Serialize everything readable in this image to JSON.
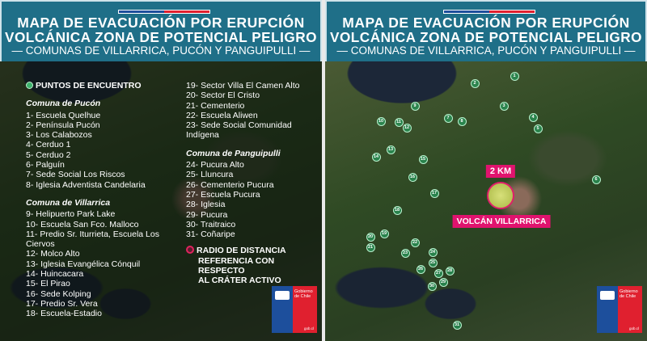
{
  "header": {
    "title_line1": "MAPA DE EVACUACIÓN POR ERUPCIÓN",
    "title_line2": "VOLCÁNICA ZONA DE POTENCIAL PELIGRO",
    "subtitle": "— COMUNAS DE VILLARRICA, PUCÓN Y PANGUIPULLI —"
  },
  "colors": {
    "header": "#1f6f88",
    "meeting_point": "#3db26c",
    "radius": "#e0136e",
    "flag_blue": "#1d4f9c",
    "flag_red": "#e0202f"
  },
  "legend": {
    "meeting_points_label": "PUNTOS DE ENCUENTRO",
    "pucon": {
      "title": "Comuna de Pucón",
      "items": [
        "1- Escuela Quelhue",
        "2- Península Pucón",
        "3- Los Calabozos",
        "4- Cerduo 1",
        "5- Cerduo 2",
        "6- Palguín",
        "7- Sede Social Los Riscos",
        "8- Iglesia Adventista Candelaria"
      ]
    },
    "villarrica": {
      "title": "Comuna de Villarrica",
      "items": [
        "9- Helipuerto Park Lake",
        "10- Escuela San Fco. Malloco",
        "11- Predio Sr. Iturrieta, Escuela Los Ciervos",
        "12- Molco Alto",
        "13- Iglesia Evangélica Cónquil",
        "14- Huincacara",
        "15- El Pirao",
        "16- Sede Kolping",
        "17- Predio Sr. Vera",
        "18- Escuela-Estadio",
        "19- Sector Villa El Camen Alto",
        "20- Sector El Cristo",
        "21- Cementerio",
        "22- Escuela Aliwen",
        "23- Sede Social Comunidad Indígena"
      ]
    },
    "panguipulli": {
      "title": "Comuna de Panguipulli",
      "items": [
        "24- Pucura Alto",
        "25- Lluncura",
        "26- Cementerio Pucura",
        "27- Escuela Pucura",
        "28- Iglesia",
        "29- Pucura",
        "30- Traitraico",
        "31- Coñaripe"
      ]
    },
    "radius_label": [
      "RADIO DE DISTANCIA",
      "REFERENCIA CON RESPECTO",
      "AL CRÁTER ACTIVO"
    ]
  },
  "map": {
    "radius_label": "2 KM",
    "volcano_label": "VOLCÁN VILLARRICA",
    "markers": [
      "1",
      "2",
      "3",
      "4",
      "5",
      "6",
      "7",
      "8",
      "9",
      "10",
      "11",
      "12",
      "13",
      "14",
      "15",
      "16",
      "17",
      "18",
      "19",
      "20",
      "21",
      "22",
      "23",
      "24",
      "25",
      "26",
      "27",
      "28",
      "29",
      "30",
      "31"
    ]
  },
  "logo": {
    "text": "Gobierno de Chile",
    "url": "gob.cl"
  }
}
